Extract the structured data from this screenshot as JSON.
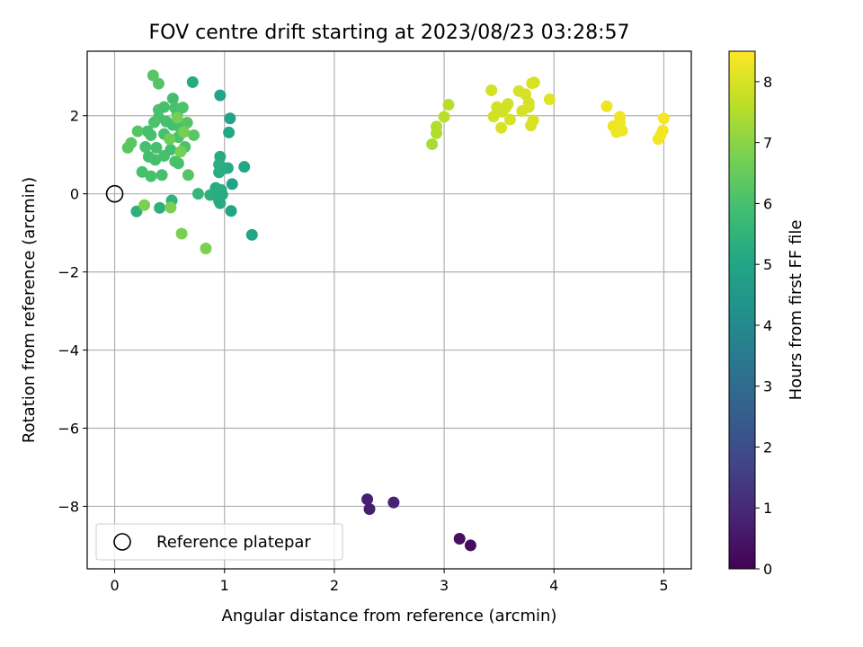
{
  "chart_data": {
    "type": "scatter",
    "title": "FOV centre drift starting at 2023/08/23 03:28:57",
    "xlabel": "Angular distance from reference (arcmin)",
    "ylabel": "Rotation from reference (arcmin)",
    "xlim": [
      -0.25,
      5.25
    ],
    "ylim": [
      -9.6,
      3.65
    ],
    "xticks": [
      0,
      1,
      2,
      3,
      4,
      5
    ],
    "xtick_labels": [
      "0",
      "1",
      "2",
      "3",
      "4",
      "5"
    ],
    "yticks": [
      -8,
      -6,
      -4,
      -2,
      0,
      2
    ],
    "ytick_labels": [
      "−8",
      "−6",
      "−4",
      "−2",
      "0",
      "2"
    ],
    "grid": true,
    "colormap": "viridis",
    "colorbar": {
      "label": "Hours from first FF file",
      "range": [
        0,
        8.5
      ],
      "ticks": [
        0,
        1,
        2,
        3,
        4,
        5,
        6,
        7,
        8
      ],
      "tick_labels": [
        "0",
        "1",
        "2",
        "3",
        "4",
        "5",
        "6",
        "7",
        "8"
      ]
    },
    "legend": {
      "location": "lower-left",
      "entries": [
        "Reference platepar"
      ]
    },
    "reference_point": {
      "x": 0,
      "y": 0
    },
    "points": [
      {
        "x": 2.3,
        "y": -7.82,
        "c": 0.75
      },
      {
        "x": 2.32,
        "y": -8.07,
        "c": 0.72
      },
      {
        "x": 2.54,
        "y": -7.9,
        "c": 0.8
      },
      {
        "x": 3.14,
        "y": -8.83,
        "c": 0.35
      },
      {
        "x": 3.24,
        "y": -9.0,
        "c": 0.3
      },
      {
        "x": 0.96,
        "y": 2.52,
        "c": 5.0
      },
      {
        "x": 0.71,
        "y": 2.86,
        "c": 5.2
      },
      {
        "x": 1.05,
        "y": 1.93,
        "c": 5.0
      },
      {
        "x": 1.04,
        "y": 1.57,
        "c": 5.1
      },
      {
        "x": 0.96,
        "y": 0.95,
        "c": 5.2
      },
      {
        "x": 0.95,
        "y": 0.75,
        "c": 5.3
      },
      {
        "x": 1.0,
        "y": 0.65,
        "c": 5.3
      },
      {
        "x": 1.03,
        "y": 0.66,
        "c": 5.2
      },
      {
        "x": 0.95,
        "y": 0.55,
        "c": 5.3
      },
      {
        "x": 1.18,
        "y": 0.69,
        "c": 5.1
      },
      {
        "x": 1.07,
        "y": 0.25,
        "c": 5.0
      },
      {
        "x": 0.92,
        "y": 0.15,
        "c": 5.2
      },
      {
        "x": 0.97,
        "y": 0.1,
        "c": 5.3
      },
      {
        "x": 0.87,
        "y": -0.03,
        "c": 5.4
      },
      {
        "x": 0.93,
        "y": -0.03,
        "c": 5.3
      },
      {
        "x": 0.98,
        "y": -0.02,
        "c": 5.2
      },
      {
        "x": 0.95,
        "y": -0.18,
        "c": 5.3
      },
      {
        "x": 0.96,
        "y": -0.24,
        "c": 5.2
      },
      {
        "x": 1.06,
        "y": -0.44,
        "c": 5.0
      },
      {
        "x": 1.25,
        "y": -1.05,
        "c": 5.0
      },
      {
        "x": 0.76,
        "y": 0.0,
        "c": 5.6
      },
      {
        "x": 0.2,
        "y": -0.45,
        "c": 5.4
      },
      {
        "x": 0.41,
        "y": -0.36,
        "c": 5.4
      },
      {
        "x": 0.52,
        "y": -0.17,
        "c": 5.5
      },
      {
        "x": 0.35,
        "y": 3.03,
        "c": 6.3
      },
      {
        "x": 0.4,
        "y": 2.82,
        "c": 6.2
      },
      {
        "x": 0.53,
        "y": 2.44,
        "c": 5.9
      },
      {
        "x": 0.4,
        "y": 2.15,
        "c": 6.1
      },
      {
        "x": 0.45,
        "y": 2.22,
        "c": 6.0
      },
      {
        "x": 0.55,
        "y": 2.2,
        "c": 6.0
      },
      {
        "x": 0.62,
        "y": 2.21,
        "c": 6.1
      },
      {
        "x": 0.57,
        "y": 2.03,
        "c": 6.0
      },
      {
        "x": 0.4,
        "y": 1.95,
        "c": 6.0
      },
      {
        "x": 0.47,
        "y": 1.85,
        "c": 6.0
      },
      {
        "x": 0.36,
        "y": 1.83,
        "c": 6.1
      },
      {
        "x": 0.3,
        "y": 1.6,
        "c": 6.0
      },
      {
        "x": 0.53,
        "y": 1.76,
        "c": 5.9
      },
      {
        "x": 0.59,
        "y": 1.72,
        "c": 6.0
      },
      {
        "x": 0.66,
        "y": 1.82,
        "c": 6.2
      },
      {
        "x": 0.21,
        "y": 1.6,
        "c": 6.2
      },
      {
        "x": 0.15,
        "y": 1.3,
        "c": 6.3
      },
      {
        "x": 0.12,
        "y": 1.18,
        "c": 6.3
      },
      {
        "x": 0.33,
        "y": 1.5,
        "c": 6.0
      },
      {
        "x": 0.45,
        "y": 1.53,
        "c": 6.0
      },
      {
        "x": 0.58,
        "y": 1.45,
        "c": 6.1
      },
      {
        "x": 0.72,
        "y": 1.5,
        "c": 6.3
      },
      {
        "x": 0.28,
        "y": 1.2,
        "c": 6.0
      },
      {
        "x": 0.38,
        "y": 1.18,
        "c": 6.0
      },
      {
        "x": 0.51,
        "y": 1.13,
        "c": 5.9
      },
      {
        "x": 0.64,
        "y": 1.2,
        "c": 6.1
      },
      {
        "x": 0.31,
        "y": 0.95,
        "c": 5.9
      },
      {
        "x": 0.37,
        "y": 0.87,
        "c": 6.0
      },
      {
        "x": 0.45,
        "y": 0.97,
        "c": 6.0
      },
      {
        "x": 0.55,
        "y": 0.83,
        "c": 6.1
      },
      {
        "x": 0.58,
        "y": 0.78,
        "c": 6.0
      },
      {
        "x": 0.25,
        "y": 0.56,
        "c": 6.0
      },
      {
        "x": 0.33,
        "y": 0.45,
        "c": 6.0
      },
      {
        "x": 0.43,
        "y": 0.48,
        "c": 6.0
      },
      {
        "x": 0.67,
        "y": 0.48,
        "c": 6.2
      },
      {
        "x": 0.27,
        "y": -0.29,
        "c": 6.8
      },
      {
        "x": 0.51,
        "y": -0.35,
        "c": 6.8
      },
      {
        "x": 0.61,
        "y": -1.02,
        "c": 6.8
      },
      {
        "x": 0.83,
        "y": -1.4,
        "c": 6.8
      },
      {
        "x": 0.57,
        "y": 1.95,
        "c": 6.7
      },
      {
        "x": 0.63,
        "y": 1.58,
        "c": 6.7
      },
      {
        "x": 0.5,
        "y": 1.4,
        "c": 6.6
      },
      {
        "x": 0.6,
        "y": 1.08,
        "c": 6.7
      },
      {
        "x": 2.89,
        "y": 1.27,
        "c": 7.4
      },
      {
        "x": 2.93,
        "y": 1.55,
        "c": 7.5
      },
      {
        "x": 2.93,
        "y": 1.72,
        "c": 7.5
      },
      {
        "x": 3.0,
        "y": 1.97,
        "c": 7.6
      },
      {
        "x": 3.04,
        "y": 2.28,
        "c": 7.6
      },
      {
        "x": 3.43,
        "y": 2.65,
        "c": 7.9
      },
      {
        "x": 3.45,
        "y": 1.98,
        "c": 7.9
      },
      {
        "x": 3.48,
        "y": 2.22,
        "c": 7.9
      },
      {
        "x": 3.53,
        "y": 2.1,
        "c": 7.9
      },
      {
        "x": 3.56,
        "y": 2.21,
        "c": 7.9
      },
      {
        "x": 3.58,
        "y": 2.3,
        "c": 7.9
      },
      {
        "x": 3.52,
        "y": 1.69,
        "c": 8.0
      },
      {
        "x": 3.6,
        "y": 1.9,
        "c": 8.0
      },
      {
        "x": 3.68,
        "y": 2.63,
        "c": 8.0
      },
      {
        "x": 3.71,
        "y": 2.12,
        "c": 8.0
      },
      {
        "x": 3.74,
        "y": 2.55,
        "c": 8.0
      },
      {
        "x": 3.77,
        "y": 2.22,
        "c": 8.0
      },
      {
        "x": 3.77,
        "y": 2.33,
        "c": 8.0
      },
      {
        "x": 3.8,
        "y": 2.83,
        "c": 8.0
      },
      {
        "x": 3.82,
        "y": 2.85,
        "c": 8.0
      },
      {
        "x": 3.79,
        "y": 1.75,
        "c": 8.0
      },
      {
        "x": 3.81,
        "y": 1.88,
        "c": 8.0
      },
      {
        "x": 3.96,
        "y": 2.42,
        "c": 8.1
      },
      {
        "x": 4.48,
        "y": 2.24,
        "c": 8.3
      },
      {
        "x": 4.54,
        "y": 1.73,
        "c": 8.3
      },
      {
        "x": 4.57,
        "y": 1.58,
        "c": 8.3
      },
      {
        "x": 4.6,
        "y": 1.97,
        "c": 8.3
      },
      {
        "x": 4.6,
        "y": 1.82,
        "c": 8.3
      },
      {
        "x": 4.62,
        "y": 1.62,
        "c": 8.3
      },
      {
        "x": 4.95,
        "y": 1.4,
        "c": 8.4
      },
      {
        "x": 4.97,
        "y": 1.5,
        "c": 8.4
      },
      {
        "x": 4.99,
        "y": 1.62,
        "c": 8.4
      },
      {
        "x": 5.0,
        "y": 1.93,
        "c": 8.4
      }
    ]
  }
}
